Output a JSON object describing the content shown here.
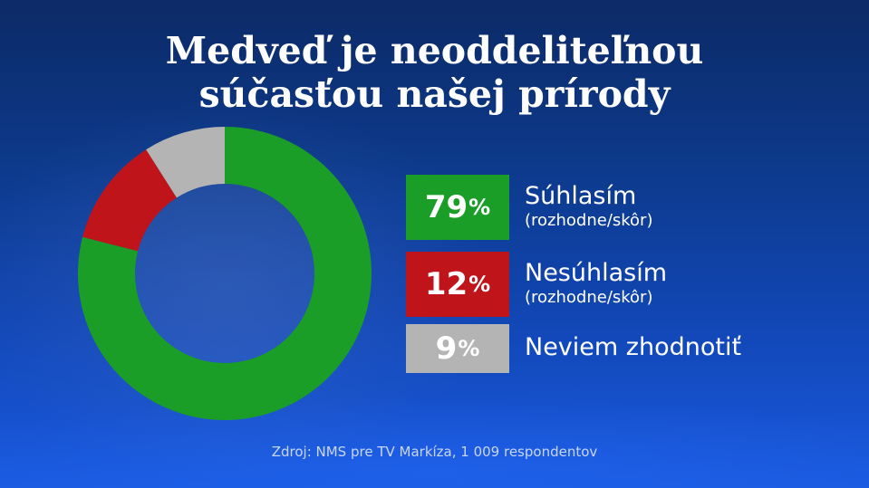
{
  "chart_data": {
    "type": "pie",
    "title_lines": [
      "Medveď je neoddeliteľnou",
      "súčasťou našej prírody"
    ],
    "series": [
      {
        "name": "Súhlasím",
        "sublabel": "(rozhodne/skôr)",
        "value": 79,
        "display_value": "79",
        "color": "#1a9e28"
      },
      {
        "name": "Nesúhlasím",
        "sublabel": "(rozhodne/skôr)",
        "value": 12,
        "display_value": "12",
        "color": "#c0141b"
      },
      {
        "name": "Neviem zhodnotiť",
        "sublabel": "",
        "value": 9,
        "display_value": "9",
        "color": "#b4b4b4"
      }
    ],
    "unit": "%",
    "legend_position": "right",
    "source": "Zdroj: NMS pre TV Markíza, 1 009 respondentov"
  }
}
